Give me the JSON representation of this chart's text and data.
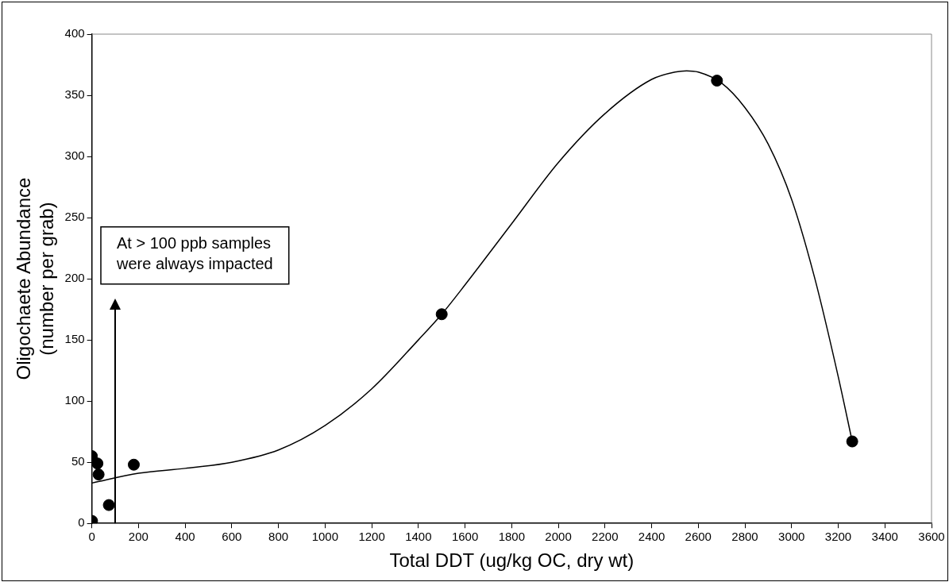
{
  "chart_data": {
    "type": "scatter",
    "xlabel": "Total DDT (ug/kg OC, dry wt)",
    "ylabel": "Oligochaete Abundance\n(number per grab)",
    "xlim": [
      0,
      3600
    ],
    "xticks": [
      0,
      200,
      400,
      600,
      800,
      1000,
      1200,
      1400,
      1600,
      1800,
      2000,
      2200,
      2400,
      2600,
      2800,
      3000,
      3200,
      3400,
      3600
    ],
    "ylim": [
      0,
      400
    ],
    "yticks": [
      0,
      50,
      100,
      150,
      200,
      250,
      300,
      350,
      400
    ],
    "grid": false,
    "legend": false,
    "marker": "circle",
    "series": [
      {
        "color": "#000000",
        "x": [
          0,
          1,
          24,
          29,
          73,
          180,
          1500,
          2680,
          3260
        ],
        "values": [
          55,
          2,
          49,
          40,
          15,
          48,
          171,
          362,
          67
        ]
      },
      {
        "type": "line",
        "color": "#000000",
        "marker": "none",
        "line_style": "solid",
        "x": [
          0,
          200,
          400,
          600,
          800,
          1000,
          1200,
          1400,
          1500,
          1600,
          1800,
          2000,
          2200,
          2400,
          2500,
          2550,
          2600,
          2700,
          2800,
          2900,
          3000,
          3100,
          3200,
          3260
        ],
        "values": [
          33,
          41,
          45,
          50,
          60,
          80,
          110,
          150,
          171,
          195,
          245,
          295,
          335,
          363,
          369,
          370,
          369,
          360,
          340,
          310,
          265,
          200,
          120,
          67
        ]
      }
    ],
    "ref_lines": [
      {
        "axis": "x",
        "value": 100,
        "line_style": "solid"
      }
    ],
    "annotations": [
      "At > 100 ppb samples were always impacted"
    ]
  }
}
